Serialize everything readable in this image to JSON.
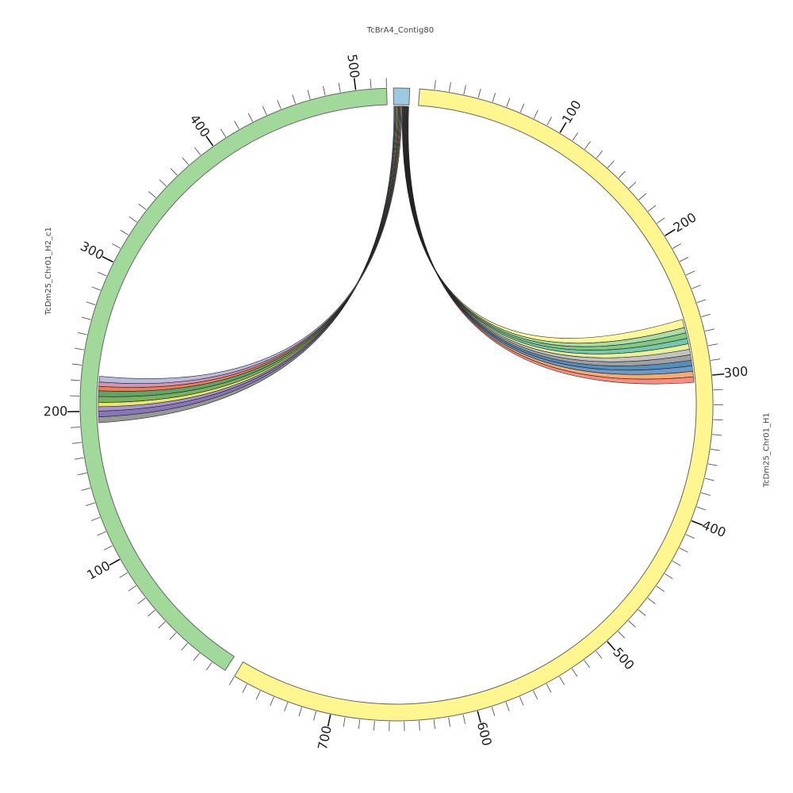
{
  "chart_data": {
    "type": "chord",
    "title": "",
    "segments": [
      {
        "name": "TcBrA4_Contig80",
        "length": 5,
        "color": "#9ecae1",
        "label": "TcBrA4_Contig80",
        "tick_labels": []
      },
      {
        "name": "TcDm25_Chr01_H1",
        "length": 770,
        "color": "#fff68f",
        "label": "TcDm25_Chr01_H1",
        "tick_labels": [
          "100",
          "200",
          "300",
          "400",
          "500",
          "600",
          "700"
        ]
      },
      {
        "name": "TcDm25_Chr01_H2_c1",
        "length": 520,
        "color": "#a1d99b",
        "label": "TcDm25_Chr01_H2_c1",
        "tick_labels": [
          "100",
          "200",
          "300",
          "400",
          "500"
        ]
      }
    ],
    "links": [
      {
        "source": "TcBrA4_Contig80",
        "target": "TcDm25_Chr01_H1",
        "target_range": [
          258,
          264
        ],
        "color": "#fff68f"
      },
      {
        "source": "TcBrA4_Contig80",
        "target": "TcDm25_Chr01_H1",
        "target_range": [
          264,
          268
        ],
        "color": "#a1d99b"
      },
      {
        "source": "TcBrA4_Contig80",
        "target": "TcDm25_Chr01_H1",
        "target_range": [
          268,
          272
        ],
        "color": "#74c476"
      },
      {
        "source": "TcBrA4_Contig80",
        "target": "TcDm25_Chr01_H1",
        "target_range": [
          272,
          276
        ],
        "color": "#66c2a4"
      },
      {
        "source": "TcBrA4_Contig80",
        "target": "TcDm25_Chr01_H1",
        "target_range": [
          276,
          280
        ],
        "color": "#e6f28c"
      },
      {
        "source": "TcBrA4_Contig80",
        "target": "TcDm25_Chr01_H1",
        "target_range": [
          280,
          284
        ],
        "color": "#bdbdbd"
      },
      {
        "source": "TcBrA4_Contig80",
        "target": "TcDm25_Chr01_H1",
        "target_range": [
          284,
          288
        ],
        "color": "#969696"
      },
      {
        "source": "TcBrA4_Contig80",
        "target": "TcDm25_Chr01_H1",
        "target_range": [
          288,
          292
        ],
        "color": "#4682b4"
      },
      {
        "source": "TcBrA4_Contig80",
        "target": "TcDm25_Chr01_H1",
        "target_range": [
          292,
          296
        ],
        "color": "#5b8fc7"
      },
      {
        "source": "TcBrA4_Contig80",
        "target": "TcDm25_Chr01_H1",
        "target_range": [
          296,
          300
        ],
        "color": "#f4a460"
      },
      {
        "source": "TcBrA4_Contig80",
        "target": "TcDm25_Chr01_H1",
        "target_range": [
          300,
          304
        ],
        "color": "#fa8072"
      },
      {
        "source": "TcBrA4_Contig80",
        "target": "TcDm25_Chr01_H2_c1",
        "target_range": [
          192,
          196
        ],
        "color": "#8c8c8c"
      },
      {
        "source": "TcBrA4_Contig80",
        "target": "TcDm25_Chr01_H2_c1",
        "target_range": [
          196,
          200
        ],
        "color": "#7b68ae"
      },
      {
        "source": "TcBrA4_Contig80",
        "target": "TcDm25_Chr01_H2_c1",
        "target_range": [
          200,
          203
        ],
        "color": "#9e87c9"
      },
      {
        "source": "TcBrA4_Contig80",
        "target": "TcDm25_Chr01_H2_c1",
        "target_range": [
          203,
          206
        ],
        "color": "#e6e65c"
      },
      {
        "source": "TcBrA4_Contig80",
        "target": "TcDm25_Chr01_H2_c1",
        "target_range": [
          206,
          210
        ],
        "color": "#6aa84f"
      },
      {
        "source": "TcBrA4_Contig80",
        "target": "TcDm25_Chr01_H2_c1",
        "target_range": [
          210,
          214
        ],
        "color": "#4f9a5a"
      },
      {
        "source": "TcBrA4_Contig80",
        "target": "TcDm25_Chr01_H2_c1",
        "target_range": [
          214,
          217
        ],
        "color": "#f46d43"
      },
      {
        "source": "TcBrA4_Contig80",
        "target": "TcDm25_Chr01_H2_c1",
        "target_range": [
          217,
          220
        ],
        "color": "#c98bb0"
      },
      {
        "source": "TcBrA4_Contig80",
        "target": "TcDm25_Chr01_H2_c1",
        "target_range": [
          220,
          224
        ],
        "color": "#b4b4d8"
      }
    ],
    "grid": false,
    "legend": "none"
  }
}
